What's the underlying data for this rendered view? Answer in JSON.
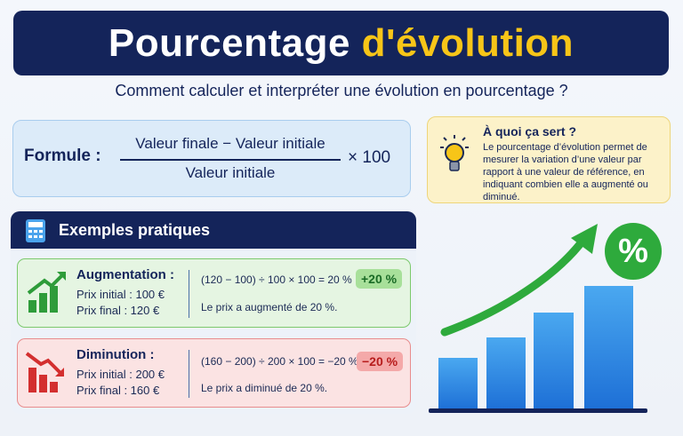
{
  "header": {
    "title_start": "Pourcentage",
    "title_end": "d'évolution",
    "subtitle": "Comment calculer et interpréter une évolution en pourcentage ?"
  },
  "formula": {
    "label": "Formule :",
    "numerator": "Valeur finale − Valeur initiale",
    "denominator": "Valeur initiale",
    "multiplier": "× 100"
  },
  "info": {
    "title": "À quoi ça sert ?",
    "text": "Le pourcentage d’évolution permet de mesurer la variation d’une valeur par rapport à une valeur de référence, en indiquant combien elle a augmenté ou diminué."
  },
  "examples": {
    "title": "Exemples pratiques",
    "items": [
      {
        "title": "Augmentation :",
        "initial": "Prix initial : 100 €",
        "final": "Prix final : 120 €",
        "calculation": "(120 − 100) ÷ 100 × 100 = 20 %",
        "badge": "+20 %",
        "conclusion": "Le prix a augmenté de 20 %."
      },
      {
        "title": "Diminution :",
        "initial": "Prix initial : 200 €",
        "final": "Prix final : 160 €",
        "calculation": "(160 − 200) ÷ 200 × 100 = −20 %",
        "badge": "−20 %",
        "conclusion": "Le prix a diminué de 20 %."
      }
    ]
  },
  "illustration": {
    "badge": "%"
  }
}
